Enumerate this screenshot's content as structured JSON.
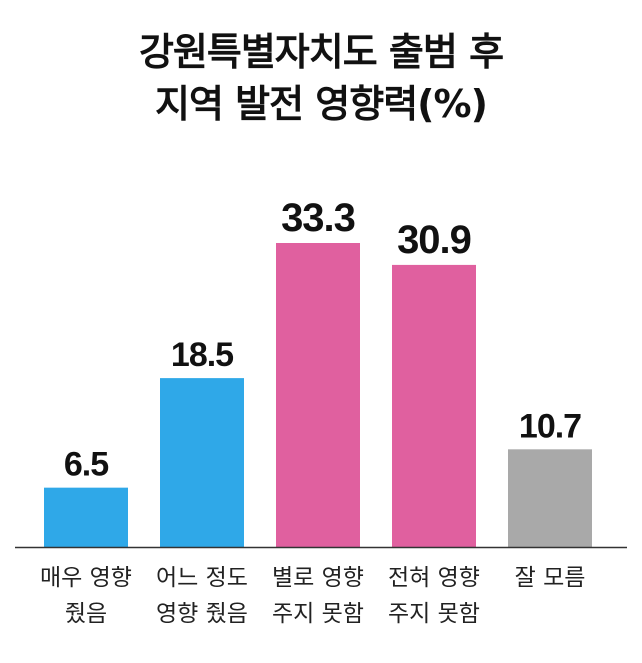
{
  "title_lines": [
    "강원특별자치도 출범 후",
    "지역 발전 영향력(%)"
  ],
  "colors": {
    "positive": "#2fa8e8",
    "negative": "#e0609f",
    "unknown": "#a9a9a9",
    "baseline": "#333333"
  },
  "chart_data": {
    "type": "bar",
    "title": "강원특별자치도 출범 후 지역 발전 영향력(%)",
    "xlabel": "",
    "ylabel": "",
    "ylim": [
      0,
      35
    ],
    "grid": false,
    "categories": [
      [
        "매우 영향",
        "줬음"
      ],
      [
        "어느 정도",
        "영향 줬음"
      ],
      [
        "별로 영향",
        "주지 못함"
      ],
      [
        "전혀 영향",
        "주지 못함"
      ],
      [
        "잘 모름"
      ]
    ],
    "values": [
      6.5,
      18.5,
      33.3,
      30.9,
      10.7
    ],
    "value_labels": [
      "6.5",
      "18.5",
      "33.3",
      "30.9",
      "10.7"
    ],
    "bar_color_keys": [
      "positive",
      "positive",
      "negative",
      "negative",
      "unknown"
    ]
  }
}
